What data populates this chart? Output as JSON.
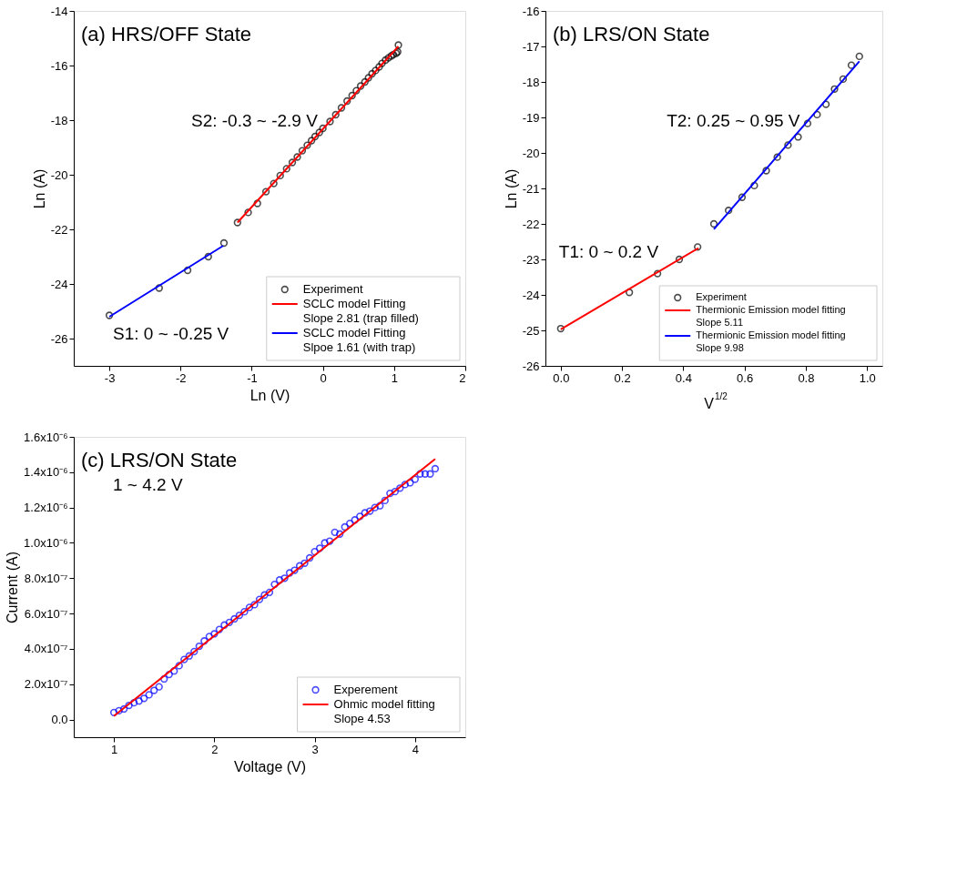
{
  "chart_data": [
    {
      "type": "scatter",
      "title": "(a) HRS/OFF State",
      "xlabel": "Ln (V)",
      "ylabel": "Ln (A)",
      "xlim": [
        -3.5,
        2
      ],
      "xticks": [
        -3,
        -2,
        -1,
        0,
        1,
        2
      ],
      "ylim": [
        -27,
        -14
      ],
      "yticks": [
        -26,
        -24,
        -22,
        -20,
        -18,
        -16,
        -14
      ],
      "grid": false,
      "legend": "bottom right",
      "annotations": [
        "S2: -0.3 ~ -2.9 V",
        "S1: 0 ~ -0.25 V"
      ],
      "series": [
        {
          "name": "Experiment",
          "type": "scatter",
          "marker": "circle",
          "color": "#000000",
          "x": [
            -3.0,
            -2.3,
            -1.9,
            -1.61,
            -1.39,
            -1.2,
            -1.05,
            -0.92,
            -0.8,
            -0.69,
            -0.6,
            -0.51,
            -0.43,
            -0.36,
            -0.29,
            -0.22,
            -0.16,
            -0.11,
            -0.05,
            0.0,
            0.1,
            0.18,
            0.26,
            0.34,
            0.41,
            0.47,
            0.53,
            0.59,
            0.64,
            0.69,
            0.74,
            0.79,
            0.83,
            0.88,
            0.92,
            0.96,
            0.99,
            1.03,
            1.05,
            1.06
          ],
          "values": [
            -25.15,
            -24.15,
            -23.5,
            -23.0,
            -22.5,
            -21.75,
            -21.38,
            -21.05,
            -20.62,
            -20.32,
            -20.03,
            -19.78,
            -19.55,
            -19.35,
            -19.12,
            -18.92,
            -18.75,
            -18.6,
            -18.45,
            -18.3,
            -18.05,
            -17.8,
            -17.55,
            -17.3,
            -17.1,
            -16.92,
            -16.75,
            -16.6,
            -16.45,
            -16.3,
            -16.18,
            -16.05,
            -15.92,
            -15.8,
            -15.72,
            -15.65,
            -15.6,
            -15.55,
            -15.5,
            -15.25
          ]
        },
        {
          "name": "SCLC model Fitting\nSlope 2.81 (trap filled)",
          "type": "line",
          "line_style": "solid",
          "color": "#ff0000",
          "x": [
            -1.2,
            1.06
          ],
          "values": [
            -21.75,
            -15.3
          ]
        },
        {
          "name": "SCLC model Fitting\nSlpoe 1.61 (with trap)",
          "type": "line",
          "line_style": "solid",
          "color": "#0000ff",
          "x": [
            -3.0,
            -1.4
          ],
          "values": [
            -25.2,
            -22.6
          ]
        }
      ]
    },
    {
      "type": "scatter",
      "title": "(b) LRS/ON State",
      "xlabel": "V$^{1/2}$",
      "ylabel": "Ln (A)",
      "xlim": [
        -0.05,
        1.05
      ],
      "xticks": [
        {
          "value": 0,
          "label": "0.0"
        },
        0.2,
        0.4,
        0.6,
        0.8,
        {
          "value": 1,
          "label": "1.0"
        }
      ],
      "ylim": [
        -26,
        -16
      ],
      "yticks": [
        -26,
        -25,
        -24,
        -23,
        -22,
        -21,
        -20,
        -19,
        -18,
        -17,
        -16
      ],
      "grid": false,
      "legend": "bottom right",
      "annotations": [
        "T2: 0.25 ~ 0.95 V",
        "T1: 0 ~ 0.2 V"
      ],
      "series": [
        {
          "name": "Experiment",
          "type": "scatter",
          "marker": "circle",
          "color": "#000000",
          "x": [
            0.0,
            0.224,
            0.316,
            0.387,
            0.447,
            0.5,
            0.548,
            0.592,
            0.632,
            0.671,
            0.707,
            0.742,
            0.775,
            0.806,
            0.837,
            0.866,
            0.894,
            0.922,
            0.949,
            0.975
          ],
          "values": [
            -24.95,
            -23.93,
            -23.4,
            -23.0,
            -22.65,
            -22.0,
            -21.62,
            -21.25,
            -20.92,
            -20.5,
            -20.12,
            -19.78,
            -19.55,
            -19.17,
            -18.92,
            -18.63,
            -18.2,
            -17.92,
            -17.53,
            -17.28
          ]
        },
        {
          "name": "Thermionic Emission model fitting\nSlope 5.11",
          "type": "line",
          "line_style": "solid",
          "color": "#ff0000",
          "x": [
            0.0,
            0.45
          ],
          "values": [
            -24.97,
            -22.68
          ]
        },
        {
          "name": "Thermionic Emission model fitting\nSlope 9.98",
          "type": "line",
          "line_style": "solid",
          "color": "#0000ff",
          "x": [
            0.5,
            0.975
          ],
          "values": [
            -22.15,
            -17.42
          ]
        }
      ]
    },
    {
      "type": "scatter",
      "title": "(c)  LRS/ON State",
      "xlabel": "Voltage (V)",
      "ylabel": "Current (A)",
      "xlim": [
        0.6,
        4.5
      ],
      "xticks": [
        1,
        2,
        3,
        4
      ],
      "ylim": [
        -1e-07,
        1.6e-06
      ],
      "yticks": [
        {
          "value": 0,
          "label": "0.0"
        },
        {
          "value": 2e-07,
          "label": "2.0x10⁻⁷"
        },
        {
          "value": 4e-07,
          "label": "4.0x10⁻⁷"
        },
        {
          "value": 6e-07,
          "label": "6.0x10⁻⁷"
        },
        {
          "value": 8e-07,
          "label": "8.0x10⁻⁷"
        },
        {
          "value": 1e-06,
          "label": "1.0x10⁻⁶"
        },
        {
          "value": 1.2e-06,
          "label": "1.2x10⁻⁶"
        },
        {
          "value": 1.4e-06,
          "label": "1.4x10⁻⁶"
        },
        {
          "value": 1.6e-06,
          "label": "1.6x10⁻⁶"
        }
      ],
      "grid": false,
      "legend": "bottom right",
      "annotations": [
        "1 ~ 4.2 V"
      ],
      "series": [
        {
          "name": "Experement",
          "type": "scatter",
          "marker": "circle",
          "color": "#0000ff",
          "x": [
            1.0,
            1.05,
            1.1,
            1.15,
            1.2,
            1.25,
            1.3,
            1.35,
            1.4,
            1.45,
            1.5,
            1.55,
            1.6,
            1.65,
            1.7,
            1.75,
            1.8,
            1.85,
            1.9,
            1.95,
            2.0,
            2.05,
            2.1,
            2.15,
            2.2,
            2.25,
            2.3,
            2.35,
            2.4,
            2.45,
            2.5,
            2.55,
            2.6,
            2.65,
            2.7,
            2.75,
            2.8,
            2.85,
            2.9,
            2.95,
            3.0,
            3.05,
            3.1,
            3.15,
            3.2,
            3.25,
            3.3,
            3.35,
            3.4,
            3.45,
            3.5,
            3.55,
            3.6,
            3.65,
            3.7,
            3.75,
            3.8,
            3.85,
            3.9,
            3.95,
            4.0,
            4.05,
            4.1,
            4.15,
            4.2
          ],
          "values": [
            4e-08,
            5e-08,
            6e-08,
            8e-08,
            9.5e-08,
            1.05e-07,
            1.2e-07,
            1.4e-07,
            1.65e-07,
            1.85e-07,
            2.3e-07,
            2.55e-07,
            2.75e-07,
            3.05e-07,
            3.4e-07,
            3.6e-07,
            3.85e-07,
            4.15e-07,
            4.45e-07,
            4.7e-07,
            4.85e-07,
            5.1e-07,
            5.35e-07,
            5.5e-07,
            5.7e-07,
            5.9e-07,
            6.1e-07,
            6.35e-07,
            6.5e-07,
            6.8e-07,
            7.05e-07,
            7.2e-07,
            7.65e-07,
            7.9e-07,
            8e-07,
            8.3e-07,
            8.45e-07,
            8.7e-07,
            8.85e-07,
            9.15e-07,
            9.5e-07,
            9.7e-07,
            1e-06,
            1.01e-06,
            1.06e-06,
            1.05e-06,
            1.09e-06,
            1.11e-06,
            1.13e-06,
            1.15e-06,
            1.17e-06,
            1.18e-06,
            1.2e-06,
            1.21e-06,
            1.24e-06,
            1.28e-06,
            1.29e-06,
            1.31e-06,
            1.33e-06,
            1.34e-06,
            1.36e-06,
            1.39e-06,
            1.39e-06,
            1.39e-06,
            1.42e-06
          ]
        },
        {
          "name": "Ohmic model fitting\nSlope 4.53",
          "type": "line",
          "line_style": "solid",
          "color": "#ff0000",
          "x": [
            1.0,
            4.2
          ],
          "values": [
            2e-08,
            1.475e-06
          ]
        }
      ]
    }
  ]
}
